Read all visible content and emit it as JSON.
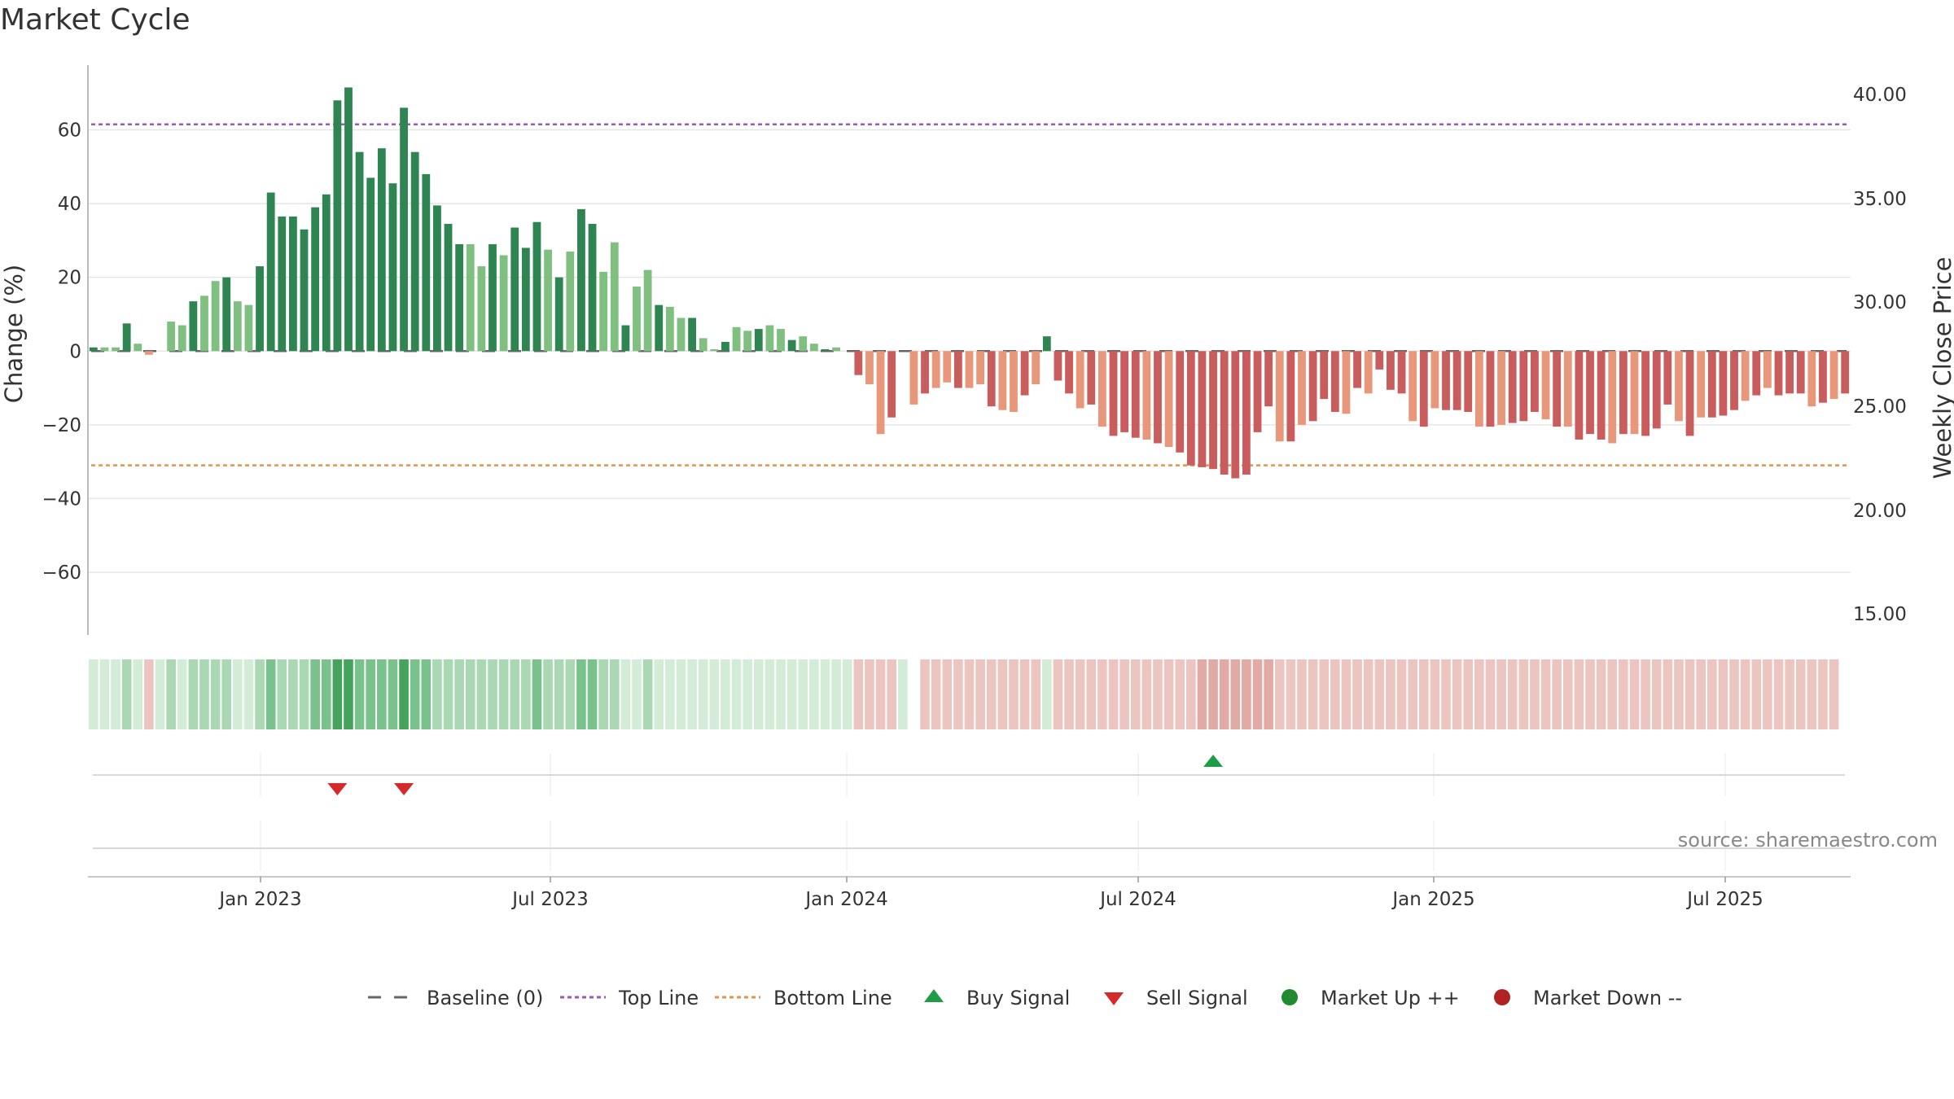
{
  "title": "Market Cycle",
  "source": "source: sharemaestro.com",
  "colors": {
    "up_strong": "#2e8552",
    "up_light": "#7fbf7f",
    "down_strong": "#c95c5c",
    "down_light": "#e8977a",
    "top_line": "#9b59b6",
    "bottom_line": "#e0954f",
    "buy": "#1e9c46",
    "sell": "#d42a2a",
    "market_up": "#1f8a2e",
    "market_down": "#b22222"
  },
  "chart_data": {
    "type": "bar",
    "ylabel": "Change (%)",
    "y2label": "Weekly Close Price",
    "ylim": [
      -77,
      78
    ],
    "yticks": [
      60,
      40,
      20,
      0,
      -20,
      -40,
      -60
    ],
    "ytick_labels": [
      "60",
      "40",
      "20",
      "0",
      "−20",
      "−40",
      "−60"
    ],
    "y2ticks": [
      "40.00",
      "35.00",
      "30.00",
      "25.00",
      "20.00",
      "15.00"
    ],
    "xticks": [
      "Jan 2023",
      "Jul 2023",
      "Jan 2024",
      "Jul 2024",
      "Jan 2025",
      "Jul 2025"
    ],
    "top_line": 61.5,
    "bottom_line": -31,
    "values": [
      1,
      1,
      1,
      7.5,
      2,
      -1,
      0,
      8,
      7,
      13.5,
      15,
      19,
      20,
      13.5,
      12.5,
      23,
      43,
      36.5,
      36.5,
      33,
      39,
      42.5,
      68,
      71.5,
      54,
      47,
      55,
      45.5,
      66,
      54,
      48,
      39.5,
      34.5,
      29,
      29,
      23,
      29,
      26,
      33.5,
      28,
      35,
      27.5,
      20,
      27,
      38.5,
      34.5,
      21.5,
      29.5,
      7,
      17.5,
      22,
      12.5,
      12,
      9,
      9,
      3.5,
      0.5,
      2.5,
      6.5,
      5.5,
      6,
      7,
      6,
      3,
      4,
      2,
      0.5,
      1,
      0,
      -6.5,
      -9,
      -22.5,
      -18,
      0,
      -14.5,
      -11.5,
      -10,
      -8.5,
      -10,
      -10,
      -9,
      -15,
      -16,
      -16.5,
      -12,
      -9,
      4,
      -8,
      -11.5,
      -15.5,
      -14.5,
      -20.5,
      -23,
      -22,
      -23.5,
      -24,
      -25,
      -26,
      -27.5,
      -31,
      -31.5,
      -32,
      -33.5,
      -34.5,
      -33.5,
      -22,
      -15,
      -24.5,
      -24.5,
      -20,
      -19,
      -13,
      -16.5,
      -17,
      -10,
      -11.5,
      -5,
      -10.5,
      -11.5,
      -19,
      -20.5,
      -15.5,
      -16,
      -16,
      -16.5,
      -20.5,
      -20.5,
      -20,
      -19.5,
      -19,
      -16.5,
      -18.5,
      -20.5,
      -20.5,
      -24,
      -22.5,
      -24,
      -25,
      -22.5,
      -22.5,
      -23,
      -21,
      -14.5,
      -19,
      -23,
      -18,
      -18,
      -17.5,
      -16,
      -13.5,
      -12,
      -10,
      -12,
      -11.5,
      -11.5,
      -15,
      -14,
      -13,
      -11.5
    ],
    "shades": [
      1,
      1,
      1,
      2,
      1,
      1,
      1,
      2,
      1,
      2,
      2,
      2,
      2,
      1,
      1,
      2,
      3,
      2,
      2,
      2,
      3,
      3,
      4,
      4,
      3,
      3,
      3,
      3,
      4,
      3,
      3,
      2,
      2,
      2,
      2,
      2,
      2,
      2,
      2,
      2,
      3,
      2,
      2,
      2,
      3,
      3,
      2,
      2,
      1,
      1,
      2,
      1,
      1,
      1,
      1,
      1,
      1,
      1,
      1,
      1,
      1,
      1,
      1,
      1,
      1,
      1,
      1,
      1,
      1,
      1,
      1,
      1,
      1,
      1,
      0,
      1,
      1,
      1,
      1,
      1,
      1,
      1,
      1,
      1,
      1,
      1,
      1,
      1,
      1,
      1,
      1,
      1,
      1,
      1,
      1,
      1,
      1,
      1,
      1,
      1,
      2,
      2,
      2,
      2,
      2,
      2,
      2,
      1,
      1,
      1,
      1,
      1,
      1,
      1,
      1,
      1,
      1,
      1,
      1,
      1,
      1,
      1,
      1,
      1,
      1,
      1,
      1,
      1,
      1,
      1,
      1,
      1,
      1,
      1,
      1,
      1,
      1,
      1,
      1,
      1,
      1,
      1,
      1,
      1,
      1,
      1,
      1,
      1,
      1,
      1,
      1,
      1,
      1,
      1,
      1,
      1,
      1,
      1
    ],
    "buy_signals": [
      101
    ],
    "sell_signals": [
      22,
      28
    ]
  },
  "legend": [
    {
      "key": "baseline",
      "label": "Baseline (0)"
    },
    {
      "key": "top",
      "label": "Top Line"
    },
    {
      "key": "bottom",
      "label": "Bottom Line"
    },
    {
      "key": "buy",
      "label": "Buy Signal"
    },
    {
      "key": "sell",
      "label": "Sell Signal"
    },
    {
      "key": "up",
      "label": "Market Up ++"
    },
    {
      "key": "down",
      "label": "Market Down --"
    }
  ]
}
